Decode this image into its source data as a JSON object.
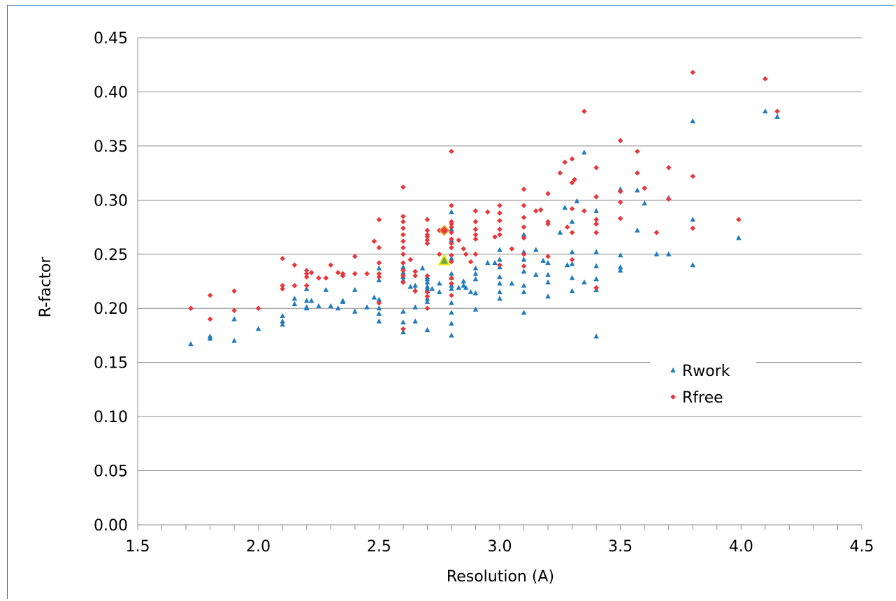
{
  "chart_data": {
    "type": "scatter",
    "title": "",
    "xlabel": "Resolution (A)",
    "ylabel": "R-factor",
    "xlim": [
      1.5,
      4.5
    ],
    "ylim": [
      0.0,
      0.45
    ],
    "x_ticks": [
      "1.5",
      "2.0",
      "2.5",
      "3.0",
      "3.5",
      "4.0",
      "4.5"
    ],
    "y_ticks": [
      "0.00",
      "0.05",
      "0.10",
      "0.15",
      "0.20",
      "0.25",
      "0.30",
      "0.35",
      "0.40",
      "0.45"
    ],
    "grid": "horizontal",
    "legend_position": "lower-right",
    "highlight": {
      "x": 2.77,
      "rwork": 0.244,
      "rfree": 0.272
    },
    "series": [
      {
        "name": "Rwork",
        "marker": "triangle",
        "color": "#1f7bc0",
        "points": [
          [
            1.72,
            0.167
          ],
          [
            1.8,
            0.172
          ],
          [
            1.8,
            0.174
          ],
          [
            1.9,
            0.17
          ],
          [
            1.9,
            0.19
          ],
          [
            2.0,
            0.181
          ],
          [
            2.1,
            0.185
          ],
          [
            2.1,
            0.188
          ],
          [
            2.1,
            0.193
          ],
          [
            2.15,
            0.204
          ],
          [
            2.15,
            0.209
          ],
          [
            2.2,
            0.2
          ],
          [
            2.2,
            0.201
          ],
          [
            2.2,
            0.207
          ],
          [
            2.2,
            0.218
          ],
          [
            2.22,
            0.207
          ],
          [
            2.25,
            0.202
          ],
          [
            2.28,
            0.217
          ],
          [
            2.3,
            0.202
          ],
          [
            2.33,
            0.2
          ],
          [
            2.35,
            0.206
          ],
          [
            2.35,
            0.207
          ],
          [
            2.4,
            0.197
          ],
          [
            2.4,
            0.217
          ],
          [
            2.45,
            0.201
          ],
          [
            2.48,
            0.21
          ],
          [
            2.5,
            0.188
          ],
          [
            2.5,
            0.195
          ],
          [
            2.5,
            0.2
          ],
          [
            2.5,
            0.208
          ],
          [
            2.5,
            0.226
          ],
          [
            2.5,
            0.237
          ],
          [
            2.6,
            0.178
          ],
          [
            2.6,
            0.187
          ],
          [
            2.6,
            0.197
          ],
          [
            2.6,
            0.226
          ],
          [
            2.6,
            0.229
          ],
          [
            2.6,
            0.233
          ],
          [
            2.6,
            0.238
          ],
          [
            2.63,
            0.22
          ],
          [
            2.65,
            0.188
          ],
          [
            2.65,
            0.201
          ],
          [
            2.65,
            0.217
          ],
          [
            2.65,
            0.221
          ],
          [
            2.68,
            0.237
          ],
          [
            2.7,
            0.18
          ],
          [
            2.7,
            0.206
          ],
          [
            2.7,
            0.209
          ],
          [
            2.7,
            0.216
          ],
          [
            2.7,
            0.218
          ],
          [
            2.7,
            0.22
          ],
          [
            2.7,
            0.224
          ],
          [
            2.7,
            0.227
          ],
          [
            2.7,
            0.229
          ],
          [
            2.72,
            0.218
          ],
          [
            2.75,
            0.215
          ],
          [
            2.75,
            0.223
          ],
          [
            2.8,
            0.175
          ],
          [
            2.8,
            0.186
          ],
          [
            2.8,
            0.196
          ],
          [
            2.8,
            0.205
          ],
          [
            2.8,
            0.218
          ],
          [
            2.8,
            0.221
          ],
          [
            2.8,
            0.228
          ],
          [
            2.8,
            0.232
          ],
          [
            2.8,
            0.246
          ],
          [
            2.8,
            0.263
          ],
          [
            2.8,
            0.273
          ],
          [
            2.8,
            0.289
          ],
          [
            2.83,
            0.219
          ],
          [
            2.85,
            0.221
          ],
          [
            2.85,
            0.225
          ],
          [
            2.86,
            0.219
          ],
          [
            2.88,
            0.215
          ],
          [
            2.9,
            0.199
          ],
          [
            2.9,
            0.214
          ],
          [
            2.9,
            0.227
          ],
          [
            2.9,
            0.232
          ],
          [
            2.9,
            0.237
          ],
          [
            2.95,
            0.242
          ],
          [
            2.98,
            0.242
          ],
          [
            3.0,
            0.209
          ],
          [
            3.0,
            0.215
          ],
          [
            3.0,
            0.223
          ],
          [
            3.0,
            0.229
          ],
          [
            3.0,
            0.238
          ],
          [
            3.0,
            0.245
          ],
          [
            3.0,
            0.254
          ],
          [
            3.05,
            0.223
          ],
          [
            3.1,
            0.196
          ],
          [
            3.1,
            0.215
          ],
          [
            3.1,
            0.221
          ],
          [
            3.1,
            0.234
          ],
          [
            3.1,
            0.245
          ],
          [
            3.1,
            0.252
          ],
          [
            3.1,
            0.268
          ],
          [
            3.15,
            0.231
          ],
          [
            3.15,
            0.254
          ],
          [
            3.18,
            0.244
          ],
          [
            3.2,
            0.211
          ],
          [
            3.2,
            0.224
          ],
          [
            3.2,
            0.231
          ],
          [
            3.2,
            0.242
          ],
          [
            3.25,
            0.27
          ],
          [
            3.27,
            0.293
          ],
          [
            3.28,
            0.24
          ],
          [
            3.3,
            0.216
          ],
          [
            3.3,
            0.228
          ],
          [
            3.3,
            0.241
          ],
          [
            3.3,
            0.252
          ],
          [
            3.3,
            0.28
          ],
          [
            3.32,
            0.299
          ],
          [
            3.35,
            0.224
          ],
          [
            3.35,
            0.344
          ],
          [
            3.4,
            0.174
          ],
          [
            3.4,
            0.217
          ],
          [
            3.4,
            0.227
          ],
          [
            3.4,
            0.239
          ],
          [
            3.4,
            0.252
          ],
          [
            3.4,
            0.279
          ],
          [
            3.4,
            0.29
          ],
          [
            3.5,
            0.235
          ],
          [
            3.5,
            0.238
          ],
          [
            3.5,
            0.249
          ],
          [
            3.5,
            0.31
          ],
          [
            3.57,
            0.272
          ],
          [
            3.57,
            0.309
          ],
          [
            3.6,
            0.297
          ],
          [
            3.65,
            0.25
          ],
          [
            3.7,
            0.25
          ],
          [
            3.7,
            0.302
          ],
          [
            3.8,
            0.24
          ],
          [
            3.8,
            0.282
          ],
          [
            3.8,
            0.373
          ],
          [
            3.99,
            0.265
          ],
          [
            4.1,
            0.382
          ],
          [
            4.15,
            0.377
          ]
        ]
      },
      {
        "name": "Rfree",
        "marker": "diamond",
        "color": "#e8373a",
        "points": [
          [
            1.72,
            0.2
          ],
          [
            1.8,
            0.19
          ],
          [
            1.8,
            0.212
          ],
          [
            1.9,
            0.198
          ],
          [
            1.9,
            0.216
          ],
          [
            2.0,
            0.2
          ],
          [
            2.1,
            0.218
          ],
          [
            2.1,
            0.221
          ],
          [
            2.1,
            0.246
          ],
          [
            2.15,
            0.221
          ],
          [
            2.15,
            0.24
          ],
          [
            2.2,
            0.221
          ],
          [
            2.2,
            0.229
          ],
          [
            2.2,
            0.232
          ],
          [
            2.2,
            0.235
          ],
          [
            2.22,
            0.233
          ],
          [
            2.25,
            0.228
          ],
          [
            2.28,
            0.228
          ],
          [
            2.3,
            0.24
          ],
          [
            2.33,
            0.233
          ],
          [
            2.35,
            0.23
          ],
          [
            2.35,
            0.232
          ],
          [
            2.4,
            0.232
          ],
          [
            2.4,
            0.248
          ],
          [
            2.45,
            0.232
          ],
          [
            2.48,
            0.262
          ],
          [
            2.5,
            0.205
          ],
          [
            2.5,
            0.229
          ],
          [
            2.5,
            0.232
          ],
          [
            2.5,
            0.242
          ],
          [
            2.5,
            0.256
          ],
          [
            2.5,
            0.282
          ],
          [
            2.6,
            0.181
          ],
          [
            2.6,
            0.224
          ],
          [
            2.6,
            0.23
          ],
          [
            2.6,
            0.235
          ],
          [
            2.6,
            0.242
          ],
          [
            2.6,
            0.25
          ],
          [
            2.6,
            0.256
          ],
          [
            2.6,
            0.262
          ],
          [
            2.6,
            0.268
          ],
          [
            2.6,
            0.274
          ],
          [
            2.6,
            0.28
          ],
          [
            2.6,
            0.285
          ],
          [
            2.6,
            0.312
          ],
          [
            2.63,
            0.245
          ],
          [
            2.65,
            0.216
          ],
          [
            2.65,
            0.23
          ],
          [
            2.65,
            0.234
          ],
          [
            2.7,
            0.2
          ],
          [
            2.7,
            0.211
          ],
          [
            2.7,
            0.215
          ],
          [
            2.7,
            0.23
          ],
          [
            2.7,
            0.26
          ],
          [
            2.7,
            0.263
          ],
          [
            2.7,
            0.266
          ],
          [
            2.7,
            0.268
          ],
          [
            2.7,
            0.272
          ],
          [
            2.7,
            0.282
          ],
          [
            2.75,
            0.25
          ],
          [
            2.75,
            0.272
          ],
          [
            2.8,
            0.212
          ],
          [
            2.8,
            0.223
          ],
          [
            2.8,
            0.228
          ],
          [
            2.8,
            0.243
          ],
          [
            2.8,
            0.249
          ],
          [
            2.8,
            0.256
          ],
          [
            2.8,
            0.26
          ],
          [
            2.8,
            0.264
          ],
          [
            2.8,
            0.27
          ],
          [
            2.8,
            0.275
          ],
          [
            2.8,
            0.278
          ],
          [
            2.8,
            0.28
          ],
          [
            2.8,
            0.295
          ],
          [
            2.8,
            0.345
          ],
          [
            2.83,
            0.263
          ],
          [
            2.85,
            0.255
          ],
          [
            2.86,
            0.25
          ],
          [
            2.88,
            0.243
          ],
          [
            2.9,
            0.25
          ],
          [
            2.9,
            0.264
          ],
          [
            2.9,
            0.268
          ],
          [
            2.9,
            0.273
          ],
          [
            2.9,
            0.28
          ],
          [
            2.9,
            0.29
          ],
          [
            2.95,
            0.289
          ],
          [
            2.98,
            0.266
          ],
          [
            3.0,
            0.24
          ],
          [
            3.0,
            0.268
          ],
          [
            3.0,
            0.273
          ],
          [
            3.0,
            0.281
          ],
          [
            3.0,
            0.288
          ],
          [
            3.0,
            0.295
          ],
          [
            3.05,
            0.255
          ],
          [
            3.1,
            0.239
          ],
          [
            3.1,
            0.25
          ],
          [
            3.1,
            0.265
          ],
          [
            3.1,
            0.275
          ],
          [
            3.1,
            0.284
          ],
          [
            3.1,
            0.295
          ],
          [
            3.1,
            0.31
          ],
          [
            3.15,
            0.29
          ],
          [
            3.17,
            0.291
          ],
          [
            3.2,
            0.248
          ],
          [
            3.2,
            0.278
          ],
          [
            3.2,
            0.28
          ],
          [
            3.2,
            0.306
          ],
          [
            3.25,
            0.325
          ],
          [
            3.27,
            0.335
          ],
          [
            3.28,
            0.275
          ],
          [
            3.3,
            0.245
          ],
          [
            3.3,
            0.27
          ],
          [
            3.3,
            0.292
          ],
          [
            3.3,
            0.316
          ],
          [
            3.3,
            0.338
          ],
          [
            3.31,
            0.319
          ],
          [
            3.35,
            0.29
          ],
          [
            3.35,
            0.382
          ],
          [
            3.4,
            0.219
          ],
          [
            3.4,
            0.27
          ],
          [
            3.4,
            0.278
          ],
          [
            3.4,
            0.282
          ],
          [
            3.4,
            0.303
          ],
          [
            3.4,
            0.33
          ],
          [
            3.5,
            0.283
          ],
          [
            3.5,
            0.298
          ],
          [
            3.5,
            0.308
          ],
          [
            3.5,
            0.355
          ],
          [
            3.57,
            0.325
          ],
          [
            3.57,
            0.345
          ],
          [
            3.6,
            0.311
          ],
          [
            3.65,
            0.27
          ],
          [
            3.7,
            0.301
          ],
          [
            3.7,
            0.33
          ],
          [
            3.8,
            0.274
          ],
          [
            3.8,
            0.322
          ],
          [
            3.8,
            0.418
          ],
          [
            3.99,
            0.282
          ],
          [
            4.1,
            0.412
          ],
          [
            4.15,
            0.382
          ]
        ]
      }
    ]
  }
}
